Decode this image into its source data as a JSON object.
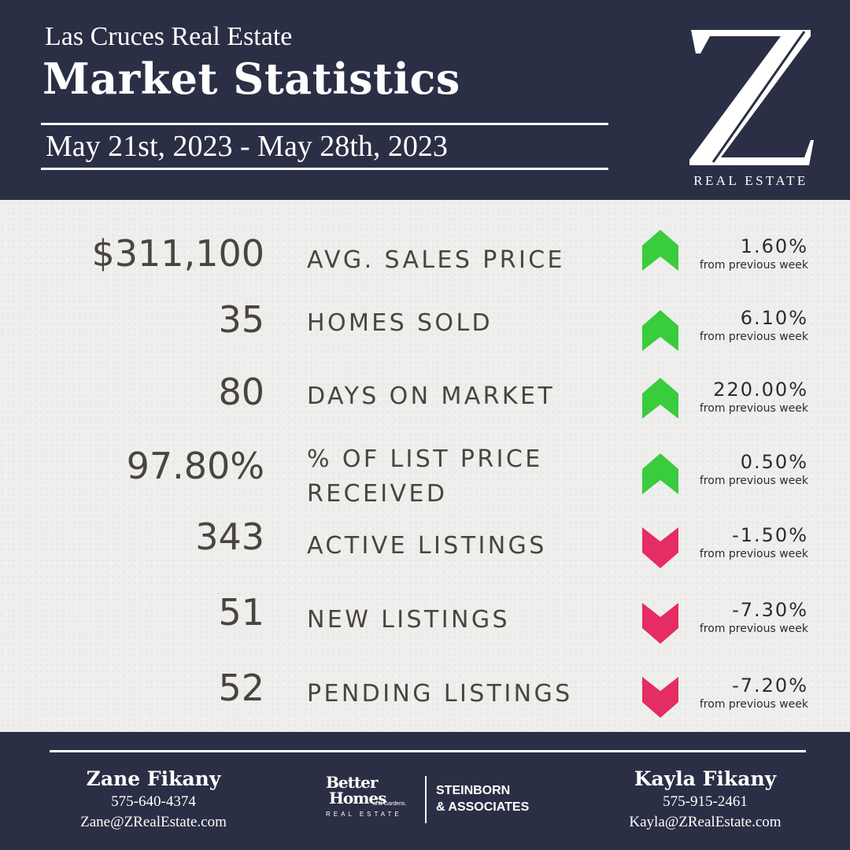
{
  "header": {
    "subtitle": "Las Cruces Real Estate",
    "title": "Market Statistics",
    "date_range": "May 21st, 2023 - May 28th, 2023"
  },
  "logo": {
    "letter": "Z",
    "tagline": "REAL ESTATE"
  },
  "colors": {
    "navy": "#2b2f45",
    "up": "#39cc3d",
    "down": "#e52c63",
    "text": "#4a4441"
  },
  "stats": [
    {
      "value": "$311,100",
      "label": "AVG. SALES PRICE",
      "trend": "up",
      "change": "1.60%",
      "note": "from previous week"
    },
    {
      "value": "35",
      "label": "HOMES SOLD",
      "trend": "up",
      "change": "6.10%",
      "note": "from previous week"
    },
    {
      "value": "80",
      "label": "DAYS ON MARKET",
      "trend": "up",
      "change": "220.00%",
      "note": "from previous week"
    },
    {
      "value": "97.80%",
      "label": "% OF LIST PRICE RECEIVED",
      "trend": "up",
      "change": "0.50%",
      "note": "from previous week"
    },
    {
      "value": "343",
      "label": "ACTIVE LISTINGS",
      "trend": "down",
      "change": "-1.50%",
      "note": "from previous week"
    },
    {
      "value": "51",
      "label": "NEW LISTINGS",
      "trend": "down",
      "change": "-7.30%",
      "note": "from previous week"
    },
    {
      "value": "52",
      "label": "PENDING LISTINGS",
      "trend": "down",
      "change": "-7.20%",
      "note": "from previous week"
    }
  ],
  "footer": {
    "agent_left": {
      "name": "Zane Fikany",
      "phone": "575-640-4374",
      "email": "Zane@ZRealEstate.com"
    },
    "agent_right": {
      "name": "Kayla Fikany",
      "phone": "575-915-2461",
      "email": "Kayla@ZRealEstate.com"
    },
    "brand": {
      "line1": "Better",
      "line2": "Homes",
      "small": "and Gardens.",
      "re": "REAL ESTATE",
      "partner_line1": "STEINBORN",
      "partner_line2": "& ASSOCIATES"
    }
  }
}
